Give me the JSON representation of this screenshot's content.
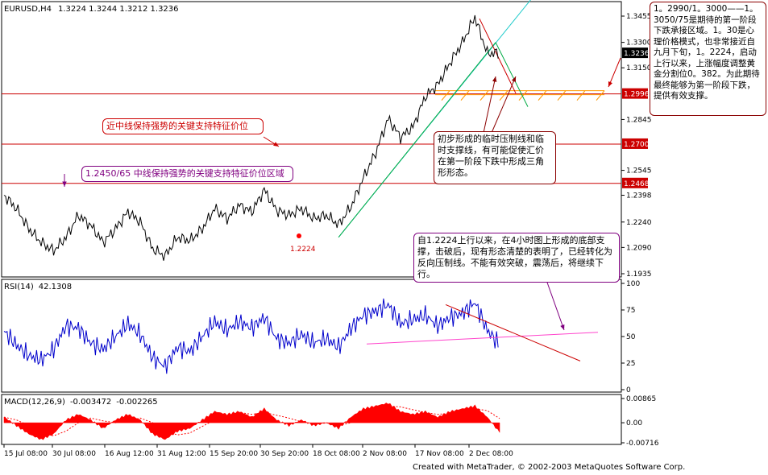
{
  "header": {
    "symbol": "EURUSD,H4",
    "ohlc": "1.3224 1.3244 1.3212 1.3236"
  },
  "chart_data": [
    {
      "type": "line",
      "panel": "price",
      "title": "EURUSD,H4",
      "ylim": [
        1.1935,
        1.3455
      ],
      "y_ticks": [
        1.3455,
        1.33,
        1.315,
        1.2845,
        1.2545,
        1.2398,
        1.224,
        1.209,
        1.1935
      ],
      "y_tick_labels": [
        "1.3455",
        "1.3300",
        "1.3150",
        "1.2845",
        "1.2545",
        "1.2398",
        "1.2240",
        "1.2090",
        "1.1935"
      ],
      "current_price": 1.3236,
      "current_price_label": "1.3236",
      "series": [
        {
          "x": [
            0,
            5,
            10,
            15,
            20,
            25,
            30,
            35,
            40,
            45,
            50,
            55,
            60,
            65,
            70,
            75,
            80,
            85,
            90,
            95,
            100,
            105,
            110,
            115,
            120,
            125,
            130,
            135,
            140,
            145,
            150,
            155,
            160,
            165,
            170,
            175,
            180,
            185,
            190,
            195,
            200
          ],
          "values": [
            1.2398,
            1.232,
            1.22,
            1.212,
            1.207,
            1.215,
            1.228,
            1.222,
            1.212,
            1.22,
            1.23,
            1.224,
            1.208,
            1.204,
            1.215,
            1.213,
            1.22,
            1.232,
            1.226,
            1.234,
            1.23,
            1.243,
            1.231,
            1.228,
            1.232,
            1.226,
            1.228,
            1.2224,
            1.233,
            1.25,
            1.265,
            1.285,
            1.274,
            1.28,
            1.298,
            1.305,
            1.318,
            1.33,
            1.345,
            1.3236,
            1.3236
          ]
        }
      ],
      "horizontal_levels": [
        {
          "value": 1.2996,
          "label": "1.2996"
        },
        {
          "value": 1.27,
          "label": "1.2700"
        },
        {
          "value": 1.2468,
          "label": "1.2468"
        }
      ],
      "annotations": [
        {
          "text": "近中线保持强势的关键支持特征价位"
        },
        {
          "text": "1.2450/65 中线保持强势的关键支持特征价位区域"
        },
        {
          "text": "1.2224"
        }
      ]
    },
    {
      "type": "line",
      "panel": "rsi",
      "title": "RSI(14)",
      "value_label": "42.1308",
      "ylim": [
        0,
        100
      ],
      "y_ticks": [
        100,
        75,
        50,
        25,
        0
      ],
      "series": [
        {
          "x": [
            0,
            5,
            10,
            15,
            20,
            25,
            30,
            35,
            40,
            45,
            50,
            55,
            60,
            65,
            70,
            75,
            80,
            85,
            90,
            95,
            100,
            105,
            110,
            115,
            120,
            125,
            130,
            135,
            140,
            145,
            150,
            155,
            160,
            165,
            170,
            175,
            180,
            185,
            190,
            195,
            200
          ],
          "values": [
            55,
            42,
            32,
            28,
            38,
            60,
            58,
            44,
            38,
            50,
            62,
            52,
            30,
            22,
            40,
            36,
            50,
            64,
            56,
            64,
            58,
            68,
            48,
            44,
            52,
            44,
            48,
            40,
            58,
            70,
            74,
            80,
            62,
            66,
            70,
            60,
            68,
            72,
            82,
            56,
            42
          ]
        }
      ]
    },
    {
      "type": "bar",
      "panel": "macd",
      "title": "MACD(12,26,9)",
      "value_labels": [
        "-0.003472",
        "-0.002265"
      ],
      "y_tick_labels": [
        "0.00865",
        "0.00",
        "-0.00716"
      ],
      "ylim": [
        -0.00716,
        0.00865
      ],
      "series": [
        {
          "values": [
            0.002,
            -0.001,
            -0.004,
            -0.006,
            -0.004,
            0.001,
            0.003,
            0.001,
            -0.002,
            0.001,
            0.003,
            0.001,
            -0.004,
            -0.006,
            -0.003,
            -0.002,
            0.001,
            0.004,
            0.003,
            0.004,
            0.002,
            0.005,
            0.001,
            -0.001,
            0.001,
            -0.001,
            0.0,
            -0.002,
            0.002,
            0.005,
            0.006,
            0.007,
            0.004,
            0.003,
            0.004,
            0.002,
            0.004,
            0.005,
            0.006,
            0.002,
            -0.003472
          ]
        }
      ]
    }
  ],
  "x_axis": {
    "labels": [
      "15 Jul 08:00",
      "30 Jul 08:00",
      "16 Aug 12:00",
      "31 Aug 12:00",
      "15 Sep 20:00",
      "30 Sep 20:00",
      "18 Oct 08:00",
      "2 Nov 08:00",
      "17 Nov 08:00",
      "2 Dec 08:00"
    ]
  },
  "notes": {
    "top_right": "1。2990/1。3000——1。3050/75是期待的第一阶段下跌承接区域。1。30是心理价格模式，也非常接近自九月下旬，1。2224，启动上行以来，上涨幅度调整黄金分割位0。382。为此期待最终能够为第一阶段下跌，提供有效支撑。",
    "triangle": "初步形成的临时压制线和临时支撑线，有可能促使汇价在第一阶段下跌中形成三角形形态。",
    "support": "自1.2224上行以来，在4小时图上形成的底部支撑，击破后，现有形态清楚的表明了，已经转化为反向压制线。不能有效突破，震荡后，将继续下行。"
  },
  "credit": "Created with MetaTrader, © 2002-2003 MetaQuotes Software Corp.",
  "colors": {
    "price_line": "#000000",
    "rsi_line": "#0000cc",
    "macd_bar": "#ff0000",
    "level_line": "#cc0000",
    "trend_green": "#00aa44",
    "trend_cyan": "#22cccc",
    "fib_orange": "#ff9900",
    "pink_line": "#ff44cc",
    "label_bg_red": "#cc0000"
  }
}
